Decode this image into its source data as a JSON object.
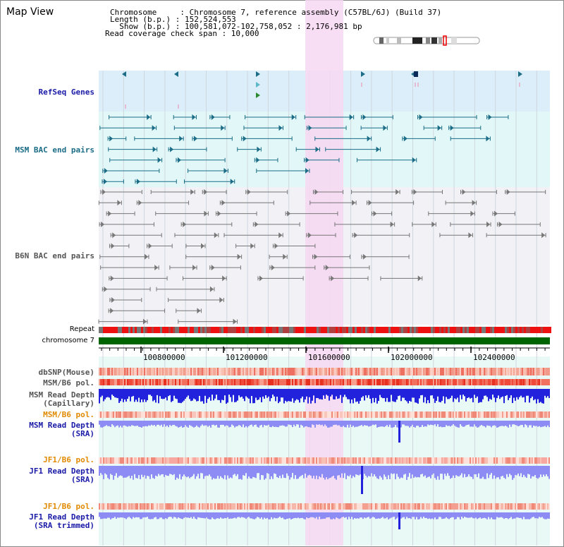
{
  "page": {
    "title": "Map View"
  },
  "header": {
    "chromosome": "Chromosome     : Chromosome 7, reference assembly (C57BL/6J) (Build 37)",
    "length": "Length (b.p.) : 152,524,553",
    "show": "  Show (b.p.) : 100,581,072-102,758,052 : 2,176,981 bp",
    "coverage": "Read coverage check span : 10,000"
  },
  "labels": {
    "refseq": "RefSeq Genes",
    "msm_bac": "MSM BAC end pairs",
    "b6n_bac": "B6N BAC end pairs",
    "repeat": "Repeat",
    "chromosome": "chromosome 7",
    "dbsnp": "dbSNP(Mouse)",
    "msm_b6_pol_1": "MSM/B6 pol.",
    "msm_depth_cap_1": "MSM Read Depth",
    "msm_depth_cap_2": "(Capillary)",
    "msm_b6_pol_2": "MSM/B6 pol.",
    "msm_depth_sra_1": "MSM Read Depth",
    "msm_depth_sra_2": "(SRA)",
    "jf1_b6_pol_1": "JF1/B6 pol.",
    "jf1_depth_sra_1": "JF1 Read Depth",
    "jf1_depth_sra_2": "(SRA)",
    "jf1_b6_pol_2": "JF1/B6 pol.",
    "jf1_depth_trim_1": "JF1 Read Depth",
    "jf1_depth_trim_2": "(SRA trimmed)"
  },
  "axis": {
    "ticks": [
      "100800000",
      "101200000",
      "101600000",
      "102000000",
      "102400000"
    ]
  },
  "colors": {
    "refseq_bg": "#dbeefa",
    "msm_bg": "#e2f8f8",
    "b6n_bg": "#f1f1f6",
    "highlight": "#f7d8f2",
    "msm_feature": "#1b6c86",
    "b6n_feature": "#777777",
    "repeat_red": "#ee1111",
    "chromosome_green": "#006400",
    "depth_blue": "#2222dd",
    "depth_light": "#8c8cf4",
    "label_blue": "#1a1aa8",
    "label_teal": "#1b6c86",
    "label_grey": "#555555",
    "label_orange": "#e08a00"
  }
}
